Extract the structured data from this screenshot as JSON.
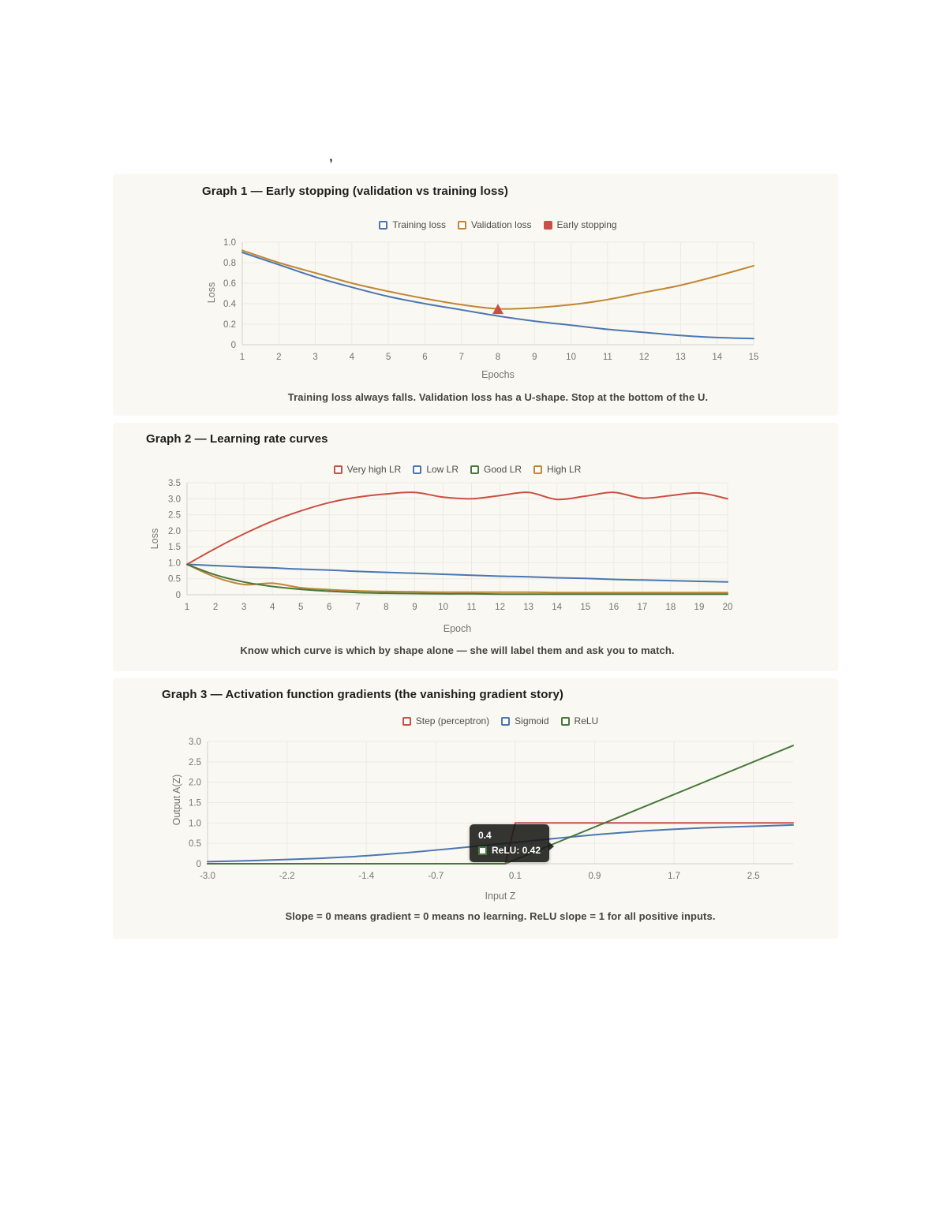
{
  "page": {
    "background": "#ffffff",
    "card_background": "#faf8f2",
    "cutoff_fragment": "’"
  },
  "colors": {
    "blue": "#4a76b2",
    "orange": "#bf8733",
    "red": "#c94f44",
    "green": "#47783a",
    "grid": "#edeae3",
    "axis": "#d2cfc7"
  },
  "chart_data": [
    {
      "type": "line",
      "title": "Graph 1 — Early stopping (validation vs training loss)",
      "xlabel": "Epochs",
      "ylabel": "Loss",
      "caption": "Training loss always falls. Validation loss has a U-shape. Stop at the bottom of the U.",
      "grid": true,
      "legend_position": "top",
      "x": [
        1,
        2,
        3,
        4,
        5,
        6,
        7,
        8,
        9,
        10,
        11,
        12,
        13,
        14,
        15
      ],
      "xlim": [
        1,
        15
      ],
      "ylim": [
        0,
        1.0
      ],
      "xtick_vals": [
        1,
        2,
        3,
        4,
        5,
        6,
        7,
        8,
        9,
        10,
        11,
        12,
        13,
        14,
        15
      ],
      "xtick_labels": [
        "1",
        "2",
        "3",
        "4",
        "5",
        "6",
        "7",
        "8",
        "9",
        "10",
        "11",
        "12",
        "13",
        "14",
        "15"
      ],
      "ytick_vals": [
        0,
        0.2,
        0.4,
        0.6,
        0.8,
        1.0
      ],
      "ytick_labels": [
        "0",
        "0.2",
        "0.4",
        "0.6",
        "0.8",
        "1.0"
      ],
      "legend": [
        {
          "label": "Training loss",
          "color": "#4a76b2",
          "fill": false
        },
        {
          "label": "Validation loss",
          "color": "#bf8733",
          "fill": false
        },
        {
          "label": "Early stopping",
          "color": "#c94f44",
          "fill": true
        }
      ],
      "series": [
        {
          "name": "Training loss",
          "color": "#4a76b2",
          "smooth": true,
          "values": [
            0.9,
            0.78,
            0.66,
            0.56,
            0.47,
            0.4,
            0.34,
            0.28,
            0.23,
            0.19,
            0.15,
            0.12,
            0.09,
            0.07,
            0.06
          ]
        },
        {
          "name": "Validation loss",
          "color": "#bf8733",
          "smooth": true,
          "values": [
            0.92,
            0.8,
            0.7,
            0.6,
            0.52,
            0.45,
            0.39,
            0.35,
            0.36,
            0.39,
            0.44,
            0.51,
            0.58,
            0.67,
            0.77
          ]
        }
      ],
      "marker": {
        "name": "Early stopping",
        "shape": "triangle",
        "x": 8,
        "y": 0.345,
        "color": "#c94f44"
      }
    },
    {
      "type": "line",
      "title": "Graph 2 — Learning rate curves",
      "xlabel": "Epoch",
      "ylabel": "Loss",
      "caption": "Know which curve is which by shape alone — she will label them and ask you to match.",
      "grid": true,
      "legend_position": "top",
      "x": [
        1,
        2,
        3,
        4,
        5,
        6,
        7,
        8,
        9,
        10,
        11,
        12,
        13,
        14,
        15,
        16,
        17,
        18,
        19,
        20
      ],
      "xlim": [
        1,
        20
      ],
      "ylim": [
        0,
        3.5
      ],
      "xtick_vals": [
        1,
        2,
        3,
        4,
        5,
        6,
        7,
        8,
        9,
        10,
        11,
        12,
        13,
        14,
        15,
        16,
        17,
        18,
        19,
        20
      ],
      "xtick_labels": [
        "1",
        "2",
        "3",
        "4",
        "5",
        "6",
        "7",
        "8",
        "9",
        "10",
        "11",
        "12",
        "13",
        "14",
        "15",
        "16",
        "17",
        "18",
        "19",
        "20"
      ],
      "ytick_vals": [
        0,
        0.5,
        1.0,
        1.5,
        2.0,
        2.5,
        3.0,
        3.5
      ],
      "ytick_labels": [
        "0",
        "0.5",
        "1.0",
        "1.5",
        "2.0",
        "2.5",
        "3.0",
        "3.5"
      ],
      "legend": [
        {
          "label": "Very high LR",
          "color": "#c94f44",
          "fill": false
        },
        {
          "label": "Low LR",
          "color": "#4a76b2",
          "fill": false
        },
        {
          "label": "Good LR",
          "color": "#47783a",
          "fill": false
        },
        {
          "label": "High LR",
          "color": "#bf8733",
          "fill": false
        }
      ],
      "series": [
        {
          "name": "Very high LR",
          "color": "#c94f44",
          "smooth": true,
          "values": [
            0.95,
            1.45,
            1.9,
            2.3,
            2.62,
            2.88,
            3.05,
            3.15,
            3.2,
            3.05,
            3.0,
            3.1,
            3.2,
            2.98,
            3.08,
            3.2,
            3.02,
            3.1,
            3.18,
            3.0
          ]
        },
        {
          "name": "Low LR",
          "color": "#4a76b2",
          "smooth": true,
          "values": [
            0.95,
            0.91,
            0.87,
            0.84,
            0.8,
            0.77,
            0.73,
            0.7,
            0.67,
            0.64,
            0.61,
            0.58,
            0.56,
            0.53,
            0.51,
            0.48,
            0.46,
            0.44,
            0.42,
            0.4
          ]
        },
        {
          "name": "High LR",
          "color": "#bf8733",
          "smooth": true,
          "values": [
            0.95,
            0.55,
            0.32,
            0.36,
            0.22,
            0.16,
            0.12,
            0.1,
            0.09,
            0.08,
            0.08,
            0.08,
            0.08,
            0.07,
            0.07,
            0.07,
            0.07,
            0.07,
            0.07,
            0.07
          ]
        },
        {
          "name": "Good LR",
          "color": "#47783a",
          "smooth": true,
          "values": [
            0.95,
            0.62,
            0.4,
            0.26,
            0.17,
            0.11,
            0.07,
            0.05,
            0.04,
            0.03,
            0.03,
            0.02,
            0.02,
            0.02,
            0.02,
            0.02,
            0.02,
            0.02,
            0.02,
            0.02
          ]
        }
      ]
    },
    {
      "type": "line",
      "title": "Graph 3 — Activation function gradients (the vanishing gradient story)",
      "xlabel": "Input Z",
      "ylabel": "Output A(Z)",
      "caption": "Slope = 0 means gradient = 0 means no learning. ReLU slope = 1 for all positive inputs.",
      "grid": true,
      "legend_position": "top",
      "xlim": [
        -3,
        2.9
      ],
      "ylim": [
        0,
        3.0
      ],
      "xtick_vals": [
        -3.0,
        -2.2,
        -1.4,
        -0.7,
        0.1,
        0.9,
        1.7,
        2.5
      ],
      "xtick_labels": [
        "-3.0",
        "-2.2",
        "-1.4",
        "-0.7",
        "0.1",
        "0.9",
        "1.7",
        "2.5"
      ],
      "ytick_vals": [
        0,
        0.5,
        1.0,
        1.5,
        2.0,
        2.5,
        3.0
      ],
      "ytick_labels": [
        "0",
        "0.5",
        "1.0",
        "1.5",
        "2.0",
        "2.5",
        "3.0"
      ],
      "legend": [
        {
          "label": "Step (perceptron)",
          "color": "#c94f44",
          "fill": false
        },
        {
          "label": "Sigmoid",
          "color": "#4a76b2",
          "fill": false
        },
        {
          "label": "ReLU",
          "color": "#47783a",
          "fill": false
        }
      ],
      "series": [
        {
          "name": "Step (perceptron)",
          "color": "#c94f44",
          "smooth": false,
          "points": [
            [
              -3,
              0
            ],
            [
              0,
              0
            ],
            [
              0.1,
              1
            ],
            [
              2.9,
              1
            ]
          ]
        },
        {
          "name": "Sigmoid",
          "color": "#4a76b2",
          "smooth": true,
          "points": [
            [
              -3,
              0.05
            ],
            [
              -2.5,
              0.08
            ],
            [
              -2,
              0.12
            ],
            [
              -1.5,
              0.18
            ],
            [
              -1,
              0.27
            ],
            [
              -0.5,
              0.38
            ],
            [
              0,
              0.5
            ],
            [
              0.5,
              0.62
            ],
            [
              1,
              0.73
            ],
            [
              1.5,
              0.82
            ],
            [
              2,
              0.88
            ],
            [
              2.5,
              0.92
            ],
            [
              2.9,
              0.95
            ]
          ]
        },
        {
          "name": "ReLU",
          "color": "#47783a",
          "smooth": false,
          "points": [
            [
              -3,
              0
            ],
            [
              0,
              0
            ],
            [
              2.9,
              2.9
            ]
          ]
        }
      ],
      "tooltip": {
        "x_title": "0.4",
        "series": "ReLU",
        "value": "0.42",
        "label": "ReLU: 0.42",
        "color": "#47783a"
      }
    }
  ]
}
